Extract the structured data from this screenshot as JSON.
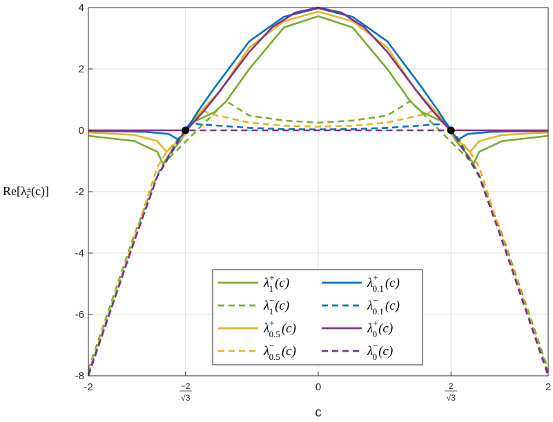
{
  "chart_data": {
    "type": "line",
    "xlabel": "c",
    "ylabel": "Re[λ±ε(c)]",
    "xlim": [
      -2,
      2
    ],
    "ylim": [
      -8,
      4
    ],
    "grid": true,
    "x_ticks": [
      {
        "value": -2,
        "label": "-2"
      },
      {
        "value": -1.1547,
        "num": "−2",
        "den": "√3"
      },
      {
        "value": 0,
        "label": "0"
      },
      {
        "value": 1.1547,
        "num": "2",
        "den": "√3"
      },
      {
        "value": 2,
        "label": "2"
      }
    ],
    "y_ticks": [
      {
        "value": 4,
        "label": "4"
      },
      {
        "value": 2,
        "label": "2"
      },
      {
        "value": 0,
        "label": "0"
      },
      {
        "value": -2,
        "label": "-2"
      },
      {
        "value": -4,
        "label": "-4"
      },
      {
        "value": -6,
        "label": "-6"
      },
      {
        "value": -8,
        "label": "-8"
      }
    ],
    "colors": {
      "eps_1": "#77AC30",
      "eps_0.5": "#EDB120",
      "eps_0.1": "#0072BD",
      "eps_0": "#7E2F8E"
    },
    "series": [
      {
        "name": "λ+1(c)",
        "eps": "1",
        "sign": "+",
        "style": "solid",
        "color": "#77AC30",
        "x": [
          -2,
          -1.6,
          -1.4,
          -1.35,
          -1.3,
          -1.2,
          -1.1,
          -0.9,
          -0.8,
          -0.6,
          -0.3,
          0,
          0.3,
          0.6,
          0.8,
          0.9,
          1.1,
          1.2,
          1.3,
          1.35,
          1.4,
          1.6,
          2
        ],
        "y": [
          -0.18,
          -0.35,
          -0.7,
          -1.1,
          -0.8,
          -0.35,
          0.25,
          0.6,
          0.95,
          2.0,
          3.35,
          3.72,
          3.35,
          2.0,
          0.95,
          0.6,
          0.25,
          -0.35,
          -0.8,
          -1.1,
          -0.7,
          -0.35,
          -0.18
        ]
      },
      {
        "name": "λ−1(c)",
        "eps": "1",
        "sign": "−",
        "style": "dashed",
        "color": "#77AC30",
        "x": [
          -2,
          -1.8,
          -1.6,
          -1.4,
          -1.35,
          -0.8,
          -0.6,
          -0.3,
          0,
          0.3,
          0.6,
          0.8,
          1.35,
          1.4,
          1.6,
          1.8,
          2
        ],
        "y": [
          -7.8,
          -5.6,
          -3.4,
          -1.45,
          -1.1,
          0.95,
          0.48,
          0.32,
          0.25,
          0.32,
          0.48,
          0.95,
          -1.1,
          -1.45,
          -3.4,
          -5.6,
          -7.8
        ]
      },
      {
        "name": "λ+0.5(c)",
        "eps": "0.5",
        "sign": "+",
        "style": "solid",
        "color": "#EDB120",
        "x": [
          -2,
          -1.6,
          -1.4,
          -1.32,
          -1.25,
          -1.15,
          -1.05,
          -0.95,
          -0.85,
          -0.6,
          -0.3,
          0,
          0.3,
          0.6,
          0.85,
          0.95,
          1.05,
          1.15,
          1.25,
          1.32,
          1.4,
          1.6,
          2
        ],
        "y": [
          -0.07,
          -0.15,
          -0.35,
          -0.7,
          -0.45,
          -0.1,
          0.5,
          0.9,
          1.3,
          2.7,
          3.55,
          3.87,
          3.55,
          2.7,
          1.3,
          0.9,
          0.5,
          -0.1,
          -0.45,
          -0.7,
          -0.35,
          -0.15,
          -0.07
        ]
      },
      {
        "name": "λ−0.5(c)",
        "eps": "0.5",
        "sign": "−",
        "style": "dashed",
        "color": "#EDB120",
        "x": [
          -2,
          -1.8,
          -1.6,
          -1.4,
          -1.32,
          -1.0,
          -0.95,
          -0.6,
          -0.3,
          0,
          0.3,
          0.6,
          0.95,
          1.0,
          1.32,
          1.4,
          1.6,
          1.8,
          2
        ],
        "y": [
          -7.9,
          -5.7,
          -3.5,
          -1.2,
          -0.7,
          0.65,
          0.55,
          0.25,
          0.15,
          0.12,
          0.15,
          0.25,
          0.55,
          0.65,
          -0.7,
          -1.2,
          -3.5,
          -5.7,
          -7.9
        ]
      },
      {
        "name": "λ+0.1(c)",
        "eps": "0.1",
        "sign": "+",
        "style": "solid",
        "color": "#0072BD",
        "x": [
          -2,
          -1.5,
          -1.3,
          -1.22,
          -1.18,
          -1.15,
          -1.1,
          -1.05,
          -0.9,
          -0.6,
          -0.3,
          0,
          0.3,
          0.6,
          0.9,
          1.05,
          1.1,
          1.15,
          1.18,
          1.22,
          1.3,
          1.5,
          2
        ],
        "y": [
          -0.02,
          -0.05,
          -0.12,
          -0.3,
          -0.15,
          0.05,
          0.3,
          0.6,
          1.4,
          2.9,
          3.7,
          3.98,
          3.7,
          2.9,
          1.4,
          0.6,
          0.3,
          0.05,
          -0.15,
          -0.3,
          -0.12,
          -0.05,
          -0.02
        ]
      },
      {
        "name": "λ−0.1(c)",
        "eps": "0.1",
        "sign": "−",
        "style": "dashed",
        "color": "#0072BD",
        "x": [
          -2,
          -1.8,
          -1.6,
          -1.4,
          -1.22,
          -1.1,
          -1.05,
          -0.6,
          -0.3,
          0,
          0.3,
          0.6,
          1.05,
          1.1,
          1.22,
          1.4,
          1.6,
          1.8,
          2
        ],
        "y": [
          -7.95,
          -5.8,
          -3.6,
          -1.5,
          -0.3,
          0.3,
          0.2,
          0.08,
          0.04,
          0.03,
          0.04,
          0.08,
          0.2,
          0.3,
          -0.3,
          -1.5,
          -3.6,
          -5.8,
          -7.95
        ]
      },
      {
        "name": "λ+0(c)",
        "eps": "0",
        "sign": "+",
        "style": "solid",
        "color": "#7E2F8E",
        "x": [
          -2,
          -1.1547,
          -1.1,
          -1.0,
          -0.9,
          -0.8,
          -0.6,
          -0.4,
          -0.2,
          0,
          0.2,
          0.4,
          0.6,
          0.8,
          0.9,
          1.0,
          1.1,
          1.1547,
          2
        ],
        "y": [
          0,
          0,
          0.2,
          0.61,
          1.07,
          1.56,
          2.56,
          3.36,
          3.84,
          4.0,
          3.84,
          3.36,
          2.56,
          1.56,
          1.07,
          0.61,
          0.2,
          0,
          0
        ]
      },
      {
        "name": "λ−0(c)",
        "eps": "0",
        "sign": "−",
        "style": "dashed",
        "color": "#7E2F8E",
        "x": [
          -2,
          -1.8,
          -1.6,
          -1.4,
          -1.2,
          -1.1547,
          1.1547,
          1.2,
          1.4,
          1.6,
          1.8,
          2
        ],
        "y": [
          -8,
          -5.8,
          -3.6,
          -1.5,
          -0.25,
          0,
          0,
          -0.25,
          -1.5,
          -3.6,
          -5.8,
          -8
        ]
      }
    ],
    "markers": [
      {
        "x": -1.1547,
        "y": 0
      },
      {
        "x": 1.1547,
        "y": 0
      }
    ],
    "legend": {
      "position": "bottom-center",
      "entries": [
        {
          "base": "λ",
          "sup": "+",
          "sub": "1",
          "arg": "(c)",
          "series": 0
        },
        {
          "base": "λ",
          "sup": "+",
          "sub": "0.1",
          "arg": "(c)",
          "series": 4
        },
        {
          "base": "λ",
          "sup": "−",
          "sub": "1",
          "arg": "(c)",
          "series": 1
        },
        {
          "base": "λ",
          "sup": "−",
          "sub": "0.1",
          "arg": "(c)",
          "series": 5
        },
        {
          "base": "λ",
          "sup": "+",
          "sub": "0.5",
          "arg": "(c)",
          "series": 2
        },
        {
          "base": "λ",
          "sup": "+",
          "sub": "0",
          "arg": "(c)",
          "series": 6
        },
        {
          "base": "λ",
          "sup": "−",
          "sub": "0.5",
          "arg": "(c)",
          "series": 3
        },
        {
          "base": "λ",
          "sup": "−",
          "sub": "0",
          "arg": "(c)",
          "series": 7
        }
      ]
    }
  }
}
